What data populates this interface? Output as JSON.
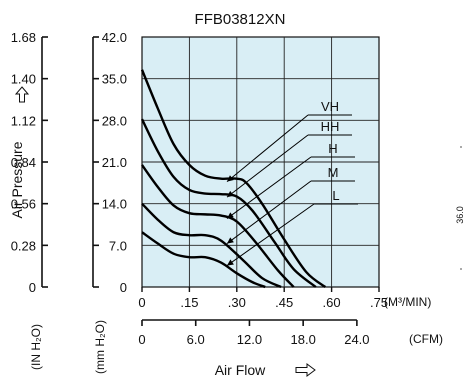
{
  "chart_data": {
    "type": "line",
    "title": "FFB03812XN",
    "xlabel": "Air Flow",
    "ylabel": "Air Pressure",
    "x_unit_top": "(M³/MIN)",
    "x_unit_bottom": "(CFM)",
    "y_unit_outer": "(IN H₂O)",
    "y_unit_inner": "(mm H₂O)",
    "x_ticks_m3min": [
      ".0",
      ".15",
      ".30",
      ".45",
      ".60",
      ".75"
    ],
    "x_tick_zero": "0",
    "x_ticks_cfm": [
      "0",
      "6.0",
      "12.0",
      "18.0",
      "24.0"
    ],
    "y_ticks_inh2o": [
      "0",
      "0.28",
      "0.56",
      "0.84",
      "1.12",
      "1.40",
      "1.68"
    ],
    "y_ticks_mmh2o": [
      "0",
      "7.0",
      "14.0",
      "21.0",
      "28.0",
      "35.0",
      "42.0"
    ],
    "xlim_m3min": [
      0,
      0.75
    ],
    "ylim_mmh2o": [
      0,
      42
    ],
    "grid": true,
    "background_color": "#d9eef5",
    "side_label": "36.0",
    "series": [
      {
        "name": "VH",
        "x": [
          0,
          0.05,
          0.1,
          0.15,
          0.2,
          0.25,
          0.3,
          0.33,
          0.38,
          0.45,
          0.52,
          0.58
        ],
        "y": [
          36.5,
          30,
          24,
          20.5,
          18.7,
          18.2,
          18.2,
          17.5,
          14,
          8,
          2.5,
          0
        ]
      },
      {
        "name": "HH",
        "x": [
          0,
          0.05,
          0.1,
          0.15,
          0.2,
          0.25,
          0.3,
          0.35,
          0.42,
          0.48,
          0.55
        ],
        "y": [
          28.2,
          22.8,
          18.5,
          16.3,
          15.7,
          15.6,
          15.2,
          12.8,
          7.5,
          3,
          0
        ]
      },
      {
        "name": "H",
        "x": [
          0,
          0.05,
          0.1,
          0.15,
          0.2,
          0.25,
          0.3,
          0.36,
          0.43,
          0.48
        ],
        "y": [
          20.5,
          16.8,
          13.7,
          12.4,
          12.2,
          12,
          11,
          7.5,
          2.8,
          0
        ]
      },
      {
        "name": "M",
        "x": [
          0,
          0.05,
          0.1,
          0.15,
          0.2,
          0.25,
          0.32,
          0.38,
          0.44
        ],
        "y": [
          14,
          11.3,
          9.2,
          8.7,
          8.7,
          7.8,
          4.5,
          1.5,
          0
        ]
      },
      {
        "name": "L",
        "x": [
          0,
          0.05,
          0.1,
          0.15,
          0.2,
          0.25,
          0.3,
          0.35,
          0.39
        ],
        "y": [
          9.2,
          7.3,
          5.6,
          5,
          5,
          4.1,
          2.3,
          0.8,
          0
        ]
      }
    ],
    "legend": "callout labels right"
  }
}
